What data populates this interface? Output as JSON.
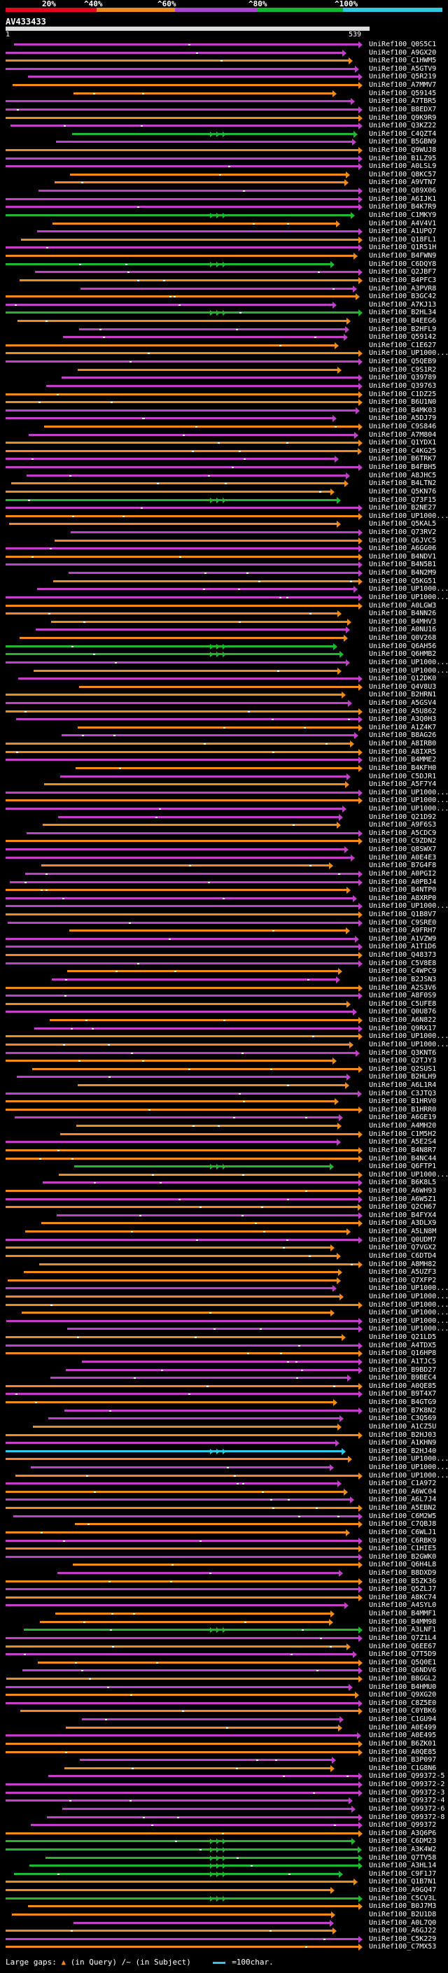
{
  "legend": {
    "ticks": [
      "20%",
      "^40%",
      "^60%",
      "^80%",
      "^100%"
    ],
    "colors": [
      "#e0081c",
      "#f08a1c",
      "#b040d0",
      "#0fb830",
      "#30c8e8"
    ]
  },
  "query": {
    "name": "AV433433",
    "start": "1",
    "end": "539"
  },
  "palette": {
    "orange": "#f08a1c",
    "purple": "#c040c8",
    "green": "#20b830",
    "cyan": "#30c8e8"
  },
  "hits": [
    {
      "label": "UniRef100_Q0S5C1",
      "c": "purple"
    },
    {
      "label": "UniRef100_A9GX20",
      "c": "purple"
    },
    {
      "label": "UniRef100_C1HWM5",
      "c": "orange"
    },
    {
      "label": "UniRef100_A5GTV9",
      "c": "purple"
    },
    {
      "label": "UniRef100_Q5R219",
      "c": "purple"
    },
    {
      "label": "UniRef100_A7MMV7",
      "c": "orange"
    },
    {
      "label": "UniRef100_Q59145",
      "c": "orange"
    },
    {
      "label": "UniRef100_A7TBR5",
      "c": "purple"
    },
    {
      "label": "UniRef100_B8EDX7",
      "c": "purple"
    },
    {
      "label": "UniRef100_Q9K9R9",
      "c": "orange"
    },
    {
      "label": "UniRef100_Q3KZ22",
      "c": "purple"
    },
    {
      "label": "UniRef100_C4QZT4",
      "c": "green"
    },
    {
      "label": "UniRef100_B5GBN9",
      "c": "purple"
    },
    {
      "label": "UniRef100_Q9WUJ8",
      "c": "orange"
    },
    {
      "label": "UniRef100_B1LZ95",
      "c": "purple"
    },
    {
      "label": "UniRef100_A0LSL9",
      "c": "purple"
    },
    {
      "label": "UniRef100_Q8KC57",
      "c": "orange"
    },
    {
      "label": "UniRef100_A9VTN7",
      "c": "orange"
    },
    {
      "label": "UniRef100_Q89X06",
      "c": "purple"
    },
    {
      "label": "UniRef100_A6IJK1",
      "c": "purple"
    },
    {
      "label": "UniRef100_B4K7R9",
      "c": "purple"
    },
    {
      "label": "UniRef100_C1MKY9",
      "c": "green"
    },
    {
      "label": "UniRef100_A4V4V1",
      "c": "orange"
    },
    {
      "label": "UniRef100_A1UPQ7",
      "c": "purple"
    },
    {
      "label": "UniRef100_Q18FL1",
      "c": "orange"
    },
    {
      "label": "UniRef100_Q1R51H",
      "c": "purple"
    },
    {
      "label": "UniRef100_B4FWN9",
      "c": "orange"
    },
    {
      "label": "UniRef100_C6DQY8",
      "c": "green"
    },
    {
      "label": "UniRef100_Q2JBF7",
      "c": "purple"
    },
    {
      "label": "UniRef100_B4PFC3",
      "c": "orange"
    },
    {
      "label": "UniRef100_A3PVR8",
      "c": "purple"
    },
    {
      "label": "UniRef100_B3GC42",
      "c": "orange"
    },
    {
      "label": "UniRef100_A7KJ13",
      "c": "purple"
    },
    {
      "label": "UniRef100_B2HL34",
      "c": "green"
    },
    {
      "label": "UniRef100_B4EEG6",
      "c": "orange"
    },
    {
      "label": "UniRef100_B2HFL9",
      "c": "purple"
    },
    {
      "label": "UniRef100_Q59142",
      "c": "purple"
    },
    {
      "label": "UniRef100_C1E627",
      "c": "orange"
    },
    {
      "label": "UniRef100_UP1000...",
      "c": "orange"
    },
    {
      "label": "UniRef100_Q5QEB9",
      "c": "purple"
    },
    {
      "label": "UniRef100_C9S1R2",
      "c": "orange"
    },
    {
      "label": "UniRef100_Q39789",
      "c": "purple"
    },
    {
      "label": "UniRef100_Q39763",
      "c": "purple"
    },
    {
      "label": "UniRef100_C1DZ25",
      "c": "orange"
    },
    {
      "label": "UniRef100_B6U1N0",
      "c": "orange"
    },
    {
      "label": "UniRef100_B4MK03",
      "c": "purple"
    },
    {
      "label": "UniRef100_A5DJ79",
      "c": "purple"
    },
    {
      "label": "UniRef100_C9S846",
      "c": "orange"
    },
    {
      "label": "UniRef100_A7M804",
      "c": "purple"
    },
    {
      "label": "UniRef100_Q1YDX1",
      "c": "orange"
    },
    {
      "label": "UniRef100_C4KG25",
      "c": "orange"
    },
    {
      "label": "UniRef100_B6TRK7",
      "c": "purple"
    },
    {
      "label": "UniRef100_B4FBH5",
      "c": "purple"
    },
    {
      "label": "UniRef100_A8JHC5",
      "c": "purple"
    },
    {
      "label": "UniRef100_B4LTN2",
      "c": "orange"
    },
    {
      "label": "UniRef100_Q5KN76",
      "c": "orange"
    },
    {
      "label": "UniRef100_Q73F15",
      "c": "green"
    },
    {
      "label": "UniRef100_B2NE27",
      "c": "purple"
    },
    {
      "label": "UniRef100_UP1000...",
      "c": "orange"
    },
    {
      "label": "UniRef100_Q5KAL5",
      "c": "orange"
    },
    {
      "label": "UniRef100_Q73RV2",
      "c": "purple"
    },
    {
      "label": "UniRef100_Q6JVC5",
      "c": "orange"
    },
    {
      "label": "UniRef100_A6GG06",
      "c": "purple"
    },
    {
      "label": "UniRef100_B4NDV1",
      "c": "orange"
    },
    {
      "label": "UniRef100_B4N5B1",
      "c": "purple"
    },
    {
      "label": "UniRef100_B4N2M9",
      "c": "purple"
    },
    {
      "label": "UniRef100_Q5KG51",
      "c": "orange"
    },
    {
      "label": "UniRef100_UP1000...",
      "c": "purple"
    },
    {
      "label": "UniRef100_UP1000...",
      "c": "purple"
    },
    {
      "label": "UniRef100_A0LGW3",
      "c": "orange"
    },
    {
      "label": "UniRef100_B4NN26",
      "c": "orange"
    },
    {
      "label": "UniRef100_B4MHV3",
      "c": "orange"
    },
    {
      "label": "UniRef100_A0NU16",
      "c": "purple"
    },
    {
      "label": "UniRef100_Q0V268",
      "c": "orange"
    },
    {
      "label": "UniRef100_Q6AH56",
      "c": "green"
    },
    {
      "label": "UniRef100_Q6HMB2",
      "c": "green"
    },
    {
      "label": "UniRef100_UP1000...",
      "c": "purple"
    },
    {
      "label": "UniRef100_UP1000...",
      "c": "orange"
    },
    {
      "label": "UniRef100_Q12DK0",
      "c": "purple"
    },
    {
      "label": "UniRef100_Q4V8U3",
      "c": "orange"
    },
    {
      "label": "UniRef100_B2HRN1",
      "c": "orange"
    },
    {
      "label": "UniRef100_A5GSV4",
      "c": "purple"
    },
    {
      "label": "UniRef100_A5U862",
      "c": "orange"
    },
    {
      "label": "UniRef100_A3Q0H3",
      "c": "purple"
    },
    {
      "label": "UniRef100_A1Z4K7",
      "c": "orange"
    },
    {
      "label": "UniRef100_B8AG26",
      "c": "purple"
    },
    {
      "label": "UniRef100_A8IRB0",
      "c": "orange"
    },
    {
      "label": "UniRef100_A8IXR5",
      "c": "orange"
    },
    {
      "label": "UniRef100_B4MME2",
      "c": "purple"
    },
    {
      "label": "UniRef100_B4KFH0",
      "c": "orange"
    },
    {
      "label": "UniRef100_C5DJR1",
      "c": "purple"
    },
    {
      "label": "UniRef100_A5F7Y4",
      "c": "orange"
    },
    {
      "label": "UniRef100_UP1000...",
      "c": "purple"
    },
    {
      "label": "UniRef100_UP1000...",
      "c": "orange"
    },
    {
      "label": "UniRef100_UP1000...",
      "c": "purple"
    },
    {
      "label": "UniRef100_Q21D92",
      "c": "purple"
    },
    {
      "label": "UniRef100_A9F6S3",
      "c": "orange"
    },
    {
      "label": "UniRef100_A5CDC9",
      "c": "purple"
    },
    {
      "label": "UniRef100_C9ZDN2",
      "c": "orange"
    },
    {
      "label": "UniRef100_Q8SWX7",
      "c": "purple"
    },
    {
      "label": "UniRef100_A0E4E3",
      "c": "purple"
    },
    {
      "label": "UniRef100_B7G4F8",
      "c": "orange"
    },
    {
      "label": "UniRef100_A0PGI2",
      "c": "purple"
    },
    {
      "label": "UniRef100_A0PBJ4",
      "c": "purple"
    },
    {
      "label": "UniRef100_B4NTP0",
      "c": "orange"
    },
    {
      "label": "UniRef100_A8XRP0",
      "c": "purple"
    },
    {
      "label": "UniRef100_UP1000...",
      "c": "purple"
    },
    {
      "label": "UniRef100_Q1B8V7",
      "c": "orange"
    },
    {
      "label": "UniRef100_C9SRE0",
      "c": "purple"
    },
    {
      "label": "UniRef100_A9FRH7",
      "c": "orange"
    },
    {
      "label": "UniRef100_A1VZW9",
      "c": "purple"
    },
    {
      "label": "UniRef100_A1T1D6",
      "c": "purple"
    },
    {
      "label": "UniRef100_Q48373",
      "c": "orange"
    },
    {
      "label": "UniRef100_C5V8E8",
      "c": "purple"
    },
    {
      "label": "UniRef100_C4WPC9",
      "c": "orange"
    },
    {
      "label": "UniRef100_B2JSN3",
      "c": "purple"
    },
    {
      "label": "UniRef100_A2S3V6",
      "c": "orange"
    },
    {
      "label": "UniRef100_A8F0S9",
      "c": "purple"
    },
    {
      "label": "UniRef100_C5UFE8",
      "c": "orange"
    },
    {
      "label": "UniRef100_Q0U876",
      "c": "purple"
    },
    {
      "label": "UniRef100_A6N822",
      "c": "orange"
    },
    {
      "label": "UniRef100_Q9RX17",
      "c": "purple"
    },
    {
      "label": "UniRef100_UP1000...",
      "c": "orange"
    },
    {
      "label": "UniRef100_UP1000...",
      "c": "orange"
    },
    {
      "label": "UniRef100_Q3KNT6",
      "c": "purple"
    },
    {
      "label": "UniRef100_Q2TJY3",
      "c": "orange"
    },
    {
      "label": "UniRef100_Q2SUS1",
      "c": "orange"
    },
    {
      "label": "UniRef100_B2HLH9",
      "c": "purple"
    },
    {
      "label": "UniRef100_A6L1R4",
      "c": "orange"
    },
    {
      "label": "UniRef100_C3JTQ3",
      "c": "purple"
    },
    {
      "label": "UniRef100_B1HRV0",
      "c": "orange"
    },
    {
      "label": "UniRef100_B1HRR0",
      "c": "orange"
    },
    {
      "label": "UniRef100_A6GE19",
      "c": "purple"
    },
    {
      "label": "UniRef100_A4MH20",
      "c": "orange"
    },
    {
      "label": "UniRef100_C1M5H2",
      "c": "orange"
    },
    {
      "label": "UniRef100_A5E2S4",
      "c": "purple"
    },
    {
      "label": "UniRef100_B4N8R7",
      "c": "orange"
    },
    {
      "label": "UniRef100_B4NC44",
      "c": "orange"
    },
    {
      "label": "UniRef100_Q6FTP1",
      "c": "green"
    },
    {
      "label": "UniRef100_UP1000...",
      "c": "orange"
    },
    {
      "label": "UniRef100_B6K8L5",
      "c": "purple"
    },
    {
      "label": "UniRef100_A6WH93",
      "c": "orange"
    },
    {
      "label": "UniRef100_A6W5Z1",
      "c": "purple"
    },
    {
      "label": "UniRef100_Q2CH67",
      "c": "orange"
    },
    {
      "label": "UniRef100_B4FYX4",
      "c": "purple"
    },
    {
      "label": "UniRef100_A3DLX9",
      "c": "orange"
    },
    {
      "label": "UniRef100_A5LN8M",
      "c": "orange"
    },
    {
      "label": "UniRef100_Q0UDM7",
      "c": "purple"
    },
    {
      "label": "UniRef100_Q7VGX2",
      "c": "orange"
    },
    {
      "label": "UniRef100_C6DTD4",
      "c": "orange"
    },
    {
      "label": "UniRef100_A8MH82",
      "c": "orange"
    },
    {
      "label": "UniRef100_A5UZF3",
      "c": "orange"
    },
    {
      "label": "UniRef100_Q7XFP2",
      "c": "orange"
    },
    {
      "label": "UniRef100_UP1000...",
      "c": "purple"
    },
    {
      "label": "UniRef100_UP1000...",
      "c": "orange"
    },
    {
      "label": "UniRef100_UP1000...",
      "c": "orange"
    },
    {
      "label": "UniRef100_UP1000...",
      "c": "orange"
    },
    {
      "label": "UniRef100_UP1000...",
      "c": "purple"
    },
    {
      "label": "UniRef100_UP1000...",
      "c": "purple"
    },
    {
      "label": "UniRef100_Q21LD5",
      "c": "orange"
    },
    {
      "label": "UniRef100_A4TDX5",
      "c": "purple"
    },
    {
      "label": "UniRef100_Q16HP8",
      "c": "orange"
    },
    {
      "label": "UniRef100_A1TJC5",
      "c": "purple"
    },
    {
      "label": "UniRef100_B9BD27",
      "c": "purple"
    },
    {
      "label": "UniRef100_B9BEC4",
      "c": "purple"
    },
    {
      "label": "UniRef100_A0QE85",
      "c": "orange"
    },
    {
      "label": "UniRef100_B9T4X7",
      "c": "purple"
    },
    {
      "label": "UniRef100_B4GTG9",
      "c": "orange"
    },
    {
      "label": "UniRef100_B7K8N2",
      "c": "purple"
    },
    {
      "label": "UniRef100_C3Q569",
      "c": "purple"
    },
    {
      "label": "UniRef100_A1CZ5U",
      "c": "orange"
    },
    {
      "label": "UniRef100_B2HJ03",
      "c": "orange"
    },
    {
      "label": "UniRef100_A1KHN9",
      "c": "purple"
    },
    {
      "label": "UniRef100_B2HJ40",
      "c": "cyan"
    },
    {
      "label": "UniRef100_UP1000...",
      "c": "orange"
    },
    {
      "label": "UniRef100_UP1000...",
      "c": "purple"
    },
    {
      "label": "UniRef100_UP1000...",
      "c": "orange"
    },
    {
      "label": "UniRef100_C1A972",
      "c": "purple"
    },
    {
      "label": "UniRef100_A6WC04",
      "c": "orange"
    },
    {
      "label": "UniRef100_A6L7J4",
      "c": "purple"
    },
    {
      "label": "UniRef100_A5EBN2",
      "c": "orange"
    },
    {
      "label": "UniRef100_C6M2W5",
      "c": "purple"
    },
    {
      "label": "UniRef100_C7QBJ8",
      "c": "orange"
    },
    {
      "label": "UniRef100_C6WLJ1",
      "c": "orange"
    },
    {
      "label": "UniRef100_C6RBK9",
      "c": "purple"
    },
    {
      "label": "UniRef100_C1HIE5",
      "c": "orange"
    },
    {
      "label": "UniRef100_B2GWK0",
      "c": "purple"
    },
    {
      "label": "UniRef100_Q6H4L8",
      "c": "orange"
    },
    {
      "label": "UniRef100_B8DXD9",
      "c": "purple"
    },
    {
      "label": "UniRef100_B5ZK36",
      "c": "orange"
    },
    {
      "label": "UniRef100_Q5ZLJ7",
      "c": "purple"
    },
    {
      "label": "UniRef100_A8KC74",
      "c": "orange"
    },
    {
      "label": "UniRef100_A4SYL0",
      "c": "purple"
    },
    {
      "label": "UniRef100_B4MMF1",
      "c": "orange"
    },
    {
      "label": "UniRef100_B4MM98",
      "c": "orange"
    },
    {
      "label": "UniRef100_A3LNF1",
      "c": "green"
    },
    {
      "label": "UniRef100_Q7Z1L4",
      "c": "purple"
    },
    {
      "label": "UniRef100_Q6EE67",
      "c": "orange"
    },
    {
      "label": "UniRef100_Q7T5D9",
      "c": "purple"
    },
    {
      "label": "UniRef100_Q5Q0E1",
      "c": "orange"
    },
    {
      "label": "UniRef100_Q6NDV6",
      "c": "purple"
    },
    {
      "label": "UniRef100_B8GGL2",
      "c": "orange"
    },
    {
      "label": "UniRef100_B4HMU0",
      "c": "purple"
    },
    {
      "label": "UniRef100_Q9XG20",
      "c": "orange"
    },
    {
      "label": "UniRef100_C8Z5E0",
      "c": "purple"
    },
    {
      "label": "UniRef100_C0YBK6",
      "c": "orange"
    },
    {
      "label": "UniRef100_C1GU94",
      "c": "purple"
    },
    {
      "label": "UniRef100_A0E499",
      "c": "orange"
    },
    {
      "label": "UniRef100_A0E495",
      "c": "purple"
    },
    {
      "label": "UniRef100_B6ZK01",
      "c": "orange"
    },
    {
      "label": "UniRef100_A0QE85",
      "c": "orange"
    },
    {
      "label": "UniRef100_B3P097",
      "c": "purple"
    },
    {
      "label": "UniRef100_C1G8N6",
      "c": "orange"
    },
    {
      "label": "UniRef100_Q99372-5",
      "c": "purple"
    },
    {
      "label": "UniRef100_Q99372-2",
      "c": "purple"
    },
    {
      "label": "UniRef100_Q99372-3",
      "c": "purple"
    },
    {
      "label": "UniRef100_Q99372-4",
      "c": "purple"
    },
    {
      "label": "UniRef100_Q99372-6",
      "c": "purple"
    },
    {
      "label": "UniRef100_Q99372-8",
      "c": "purple"
    },
    {
      "label": "UniRef100_Q99372",
      "c": "purple"
    },
    {
      "label": "UniRef100_A3Q6P6",
      "c": "orange"
    },
    {
      "label": "UniRef100_C6DM23",
      "c": "green"
    },
    {
      "label": "UniRef100_A3K4W2",
      "c": "green"
    },
    {
      "label": "UniRef100_Q7TV58",
      "c": "green"
    },
    {
      "label": "UniRef100_A3HL14",
      "c": "green"
    },
    {
      "label": "UniRef100_C9F1J7",
      "c": "green"
    },
    {
      "label": "UniRef100_Q1B7N1",
      "c": "orange"
    },
    {
      "label": "UniRef100_A9GQ47",
      "c": "orange"
    },
    {
      "label": "UniRef100_C5CV3L",
      "c": "green"
    },
    {
      "label": "UniRef100_B0J7M3",
      "c": "orange"
    },
    {
      "label": "UniRef100_B2U1D8",
      "c": "orange"
    },
    {
      "label": "UniRef100_A0L7Q0",
      "c": "purple"
    },
    {
      "label": "UniRef100_A6GJ22",
      "c": "orange"
    },
    {
      "label": "UniRef100_C5K229",
      "c": "purple"
    },
    {
      "label": "UniRef100_C7MX53",
      "c": "orange"
    }
  ],
  "footer": {
    "large_gaps": "Large gaps:",
    "in_query": "(in Query)",
    "in_subject": "/~ (in Subject)",
    "scale": "=100char."
  }
}
